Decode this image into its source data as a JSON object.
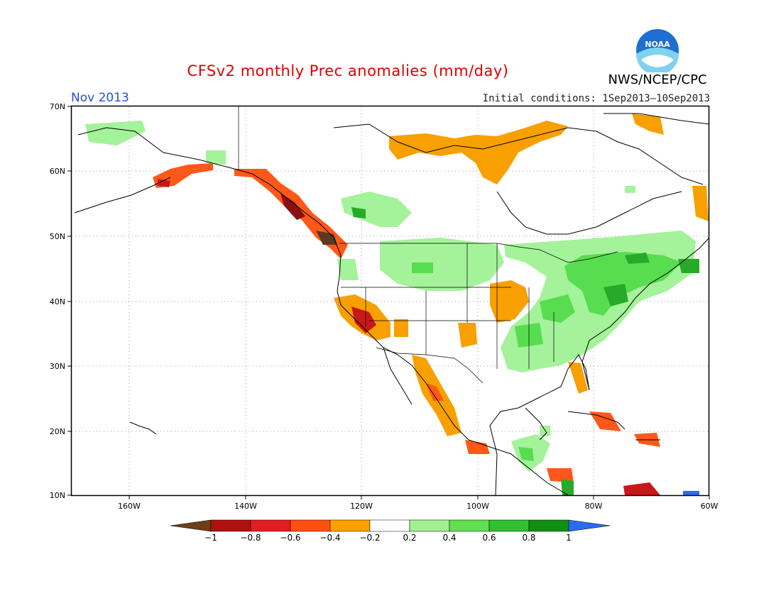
{
  "header": {
    "title": "CFSv2 monthly Prec anomalies (mm/day)",
    "month": "Nov 2013",
    "initial_conditions": "Initial conditions: 1Sep2013–10Sep2013",
    "agency": "NWS/NCEP/CPC",
    "logo_text": "NOAA"
  },
  "map": {
    "lat_labels": [
      "70N",
      "60N",
      "50N",
      "40N",
      "30N",
      "20N",
      "10N"
    ],
    "lon_labels": [
      "160W",
      "140W",
      "120W",
      "100W",
      "80W",
      "60W"
    ],
    "lat_range": [
      10,
      70
    ],
    "lon_range": [
      -170,
      -60
    ]
  },
  "colorbar": {
    "labels": [
      "−1",
      "−0.8",
      "−0.6",
      "−0.4",
      "−0.2",
      "0.2",
      "0.4",
      "0.6",
      "0.8",
      "1"
    ],
    "colors": [
      "#6b3f1c",
      "#b01010",
      "#e02020",
      "#ff5010",
      "#ffa000",
      "#ffffff",
      "#a0f090",
      "#60e050",
      "#30c030",
      "#109010",
      "#2a6cf0"
    ]
  },
  "anomaly_colors": {
    "orange": "#f8a000",
    "red_orange": "#ff5818",
    "red": "#c81818",
    "dark_red": "#8b1010",
    "brown": "#5a3a22",
    "light_green": "#a4f29a",
    "green": "#58dc50",
    "dark_green": "#28aa28",
    "blue": "#2a6cf0"
  }
}
